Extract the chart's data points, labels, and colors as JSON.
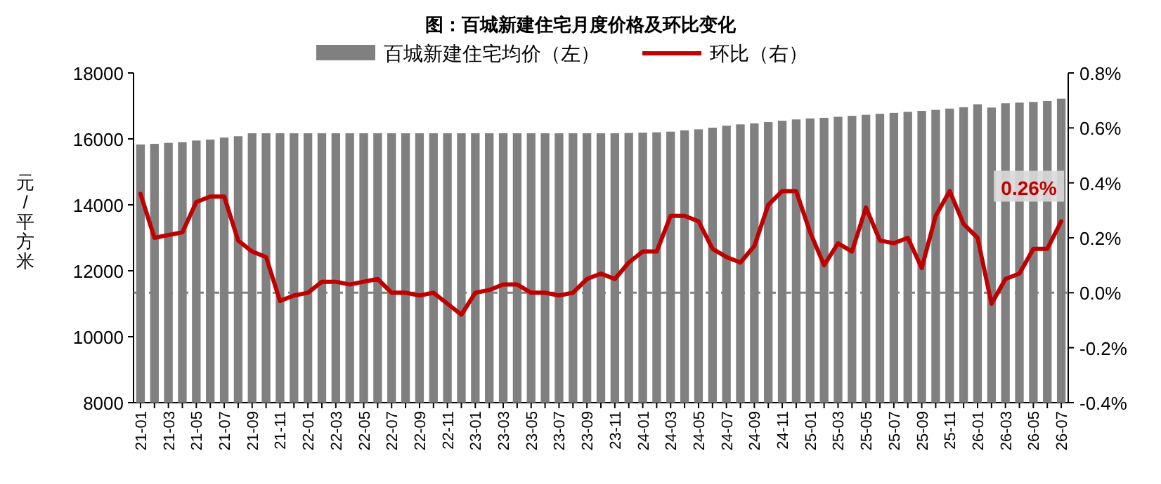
{
  "chart_data": {
    "type": "bar",
    "title": "图：百城新建住宅月度价格及环比变化",
    "ylabel": "元/平方米",
    "categories": [
      "21-01",
      null,
      "21-03",
      null,
      "21-05",
      null,
      "21-07",
      null,
      "21-09",
      null,
      "21-11",
      null,
      "22-01",
      null,
      "22-03",
      null,
      "22-05",
      null,
      "22-07",
      null,
      "22-09",
      null,
      "22-11",
      null,
      "23-01",
      null,
      "23-03",
      null,
      "23-05",
      null,
      "23-07",
      null,
      "23-09",
      null,
      "23-11",
      null,
      "24-01",
      null,
      "24-03",
      null,
      "24-05",
      null,
      "24-07",
      null,
      "24-09",
      null,
      "24-11",
      null,
      "25-01",
      null,
      "25-03",
      null,
      "25-05",
      null,
      "25-07",
      null,
      "25-09",
      null,
      "25-11",
      null,
      "26-01",
      null,
      "26-03",
      null,
      "26-05",
      null,
      "26-07"
    ],
    "series": [
      {
        "name": "百城新建住宅均价（左）",
        "color": "#808080",
        "values": [
          15830,
          15850,
          15880,
          15900,
          15950,
          15980,
          16040,
          16080,
          16170,
          16170,
          16170,
          16170,
          16170,
          16170,
          16170,
          16170,
          16170,
          16170,
          16170,
          16170,
          16170,
          16170,
          16170,
          16170,
          16170,
          16170,
          16170,
          16170,
          16170,
          16170,
          16170,
          16170,
          16170,
          16170,
          16170,
          16180,
          16190,
          16200,
          16220,
          16260,
          16290,
          16340,
          16400,
          16440,
          16470,
          16510,
          16550,
          16590,
          16620,
          16640,
          16670,
          16700,
          16730,
          16760,
          16790,
          16820,
          16850,
          16880,
          16920,
          16960,
          17050,
          16950,
          17080,
          17100,
          17120,
          17150,
          17220
        ]
      },
      {
        "name": "环比（右）",
        "type": "line",
        "axis": "y2",
        "color": "#c00000",
        "values": [
          0.36,
          0.2,
          0.21,
          0.22,
          0.33,
          0.35,
          0.35,
          0.19,
          0.15,
          0.13,
          -0.03,
          -0.01,
          0.0,
          0.04,
          0.04,
          0.03,
          0.04,
          0.05,
          0.0,
          0.0,
          -0.01,
          0.0,
          -0.04,
          -0.08,
          0.0,
          0.01,
          0.03,
          0.03,
          0.0,
          0.0,
          -0.01,
          0.0,
          0.05,
          0.07,
          0.05,
          0.11,
          0.15,
          0.15,
          0.28,
          0.28,
          0.26,
          0.16,
          0.13,
          0.11,
          0.17,
          0.32,
          0.37,
          0.37,
          0.22,
          0.1,
          0.18,
          0.15,
          0.31,
          0.19,
          0.18,
          0.2,
          0.09,
          0.28,
          0.37,
          0.25,
          0.2,
          -0.04,
          0.05,
          0.07,
          0.16,
          0.16,
          0.26
        ]
      }
    ],
    "ylim": [
      8000,
      18000
    ],
    "yticks": [
      8000,
      10000,
      12000,
      14000,
      16000,
      18000
    ],
    "y2lim": [
      -0.4,
      0.8
    ],
    "y2ticks": [
      {
        "value": -0.4,
        "label": "-0.4%"
      },
      {
        "value": -0.2,
        "label": "-0.2%"
      },
      {
        "value": 0,
        "label": "0.0%"
      },
      {
        "value": 0.2,
        "label": "0.2%"
      },
      {
        "value": 0.4,
        "label": "0.4%"
      },
      {
        "value": 0.6,
        "label": "0.6%"
      },
      {
        "value": 0.8,
        "label": "0.8%"
      }
    ],
    "ref_lines": [
      {
        "axis": "y2",
        "value": 0,
        "color": "#808080",
        "line_style": "dashed"
      }
    ],
    "annotations": [
      "0.26%"
    ],
    "legend": "top",
    "grid": false
  }
}
